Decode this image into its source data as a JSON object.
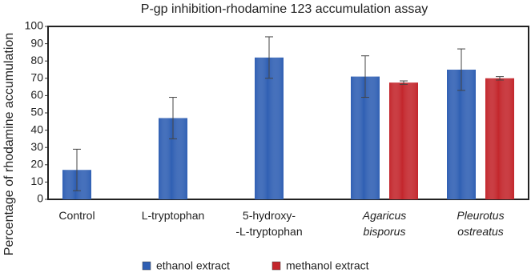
{
  "chart_data": {
    "type": "bar",
    "title": "P-gp inhibition-rhodamine 123 accumulation assay",
    "y_label": "Percentage of rhodamine accumulation",
    "categories": [
      "Control",
      "L-tryptophan",
      "5-hydroxy-\n-L-tryptophan",
      "Agaricus\nbisporus",
      "Pleurotus\nostreatus"
    ],
    "category_style": [
      "normal",
      "normal",
      "normal",
      "italic",
      "italic"
    ],
    "series": [
      {
        "name": "ethanol extract",
        "color": "#2f5fb3",
        "values": [
          17,
          47,
          82,
          71,
          75
        ],
        "errors": [
          12,
          12,
          12,
          12,
          12
        ]
      },
      {
        "name": "methanol extract",
        "color": "#c3262c",
        "values": [
          null,
          null,
          null,
          67.5,
          70
        ],
        "errors": [
          null,
          null,
          null,
          1,
          1
        ]
      }
    ],
    "ylim": [
      0,
      100
    ],
    "yticks": [
      0,
      10,
      20,
      30,
      40,
      50,
      60,
      70,
      80,
      90,
      100
    ],
    "legend": "bottom"
  }
}
